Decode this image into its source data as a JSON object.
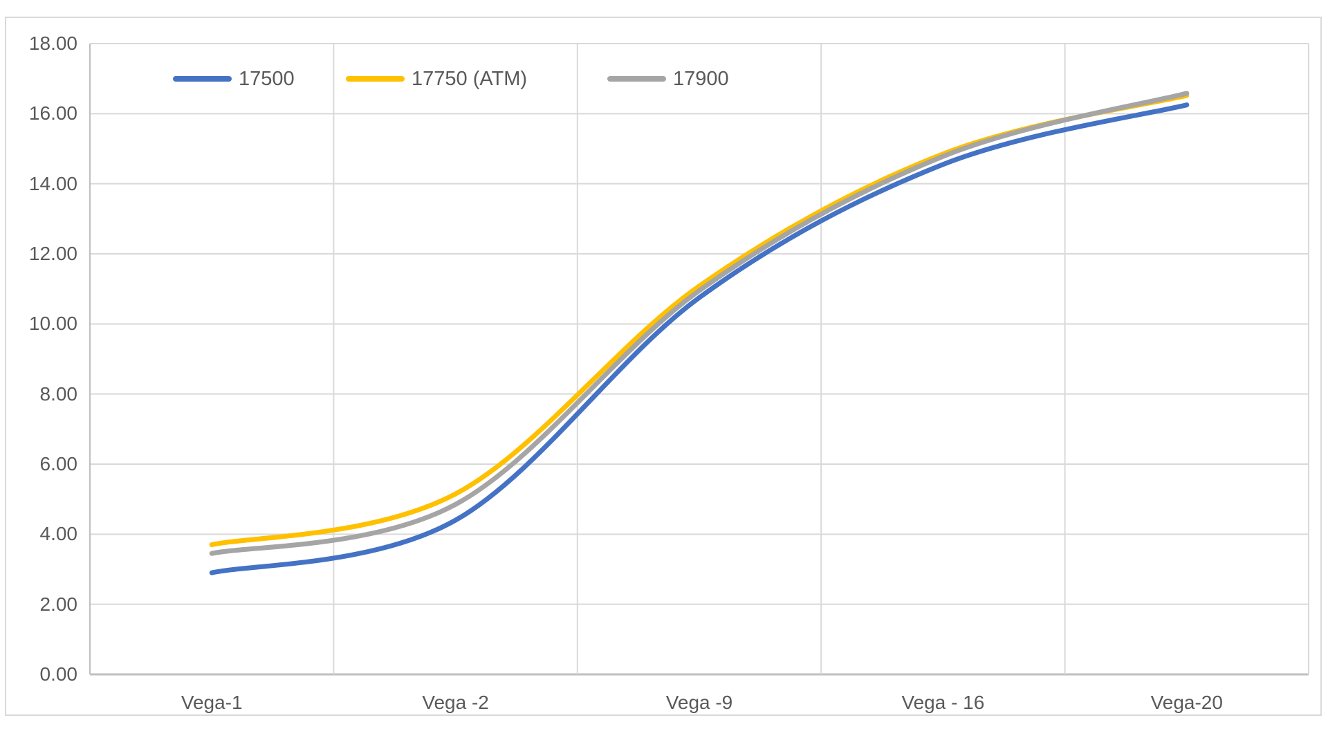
{
  "chart_data": {
    "type": "line",
    "smooth": true,
    "title": "",
    "xlabel": "",
    "ylabel": "",
    "categories": [
      "Vega-1",
      "Vega -2",
      "Vega -9",
      "Vega - 16",
      "Vega-20"
    ],
    "series": [
      {
        "name": "17500",
        "color": "#4472C4",
        "values": [
          2.9,
          4.4,
          10.75,
          14.55,
          16.25
        ]
      },
      {
        "name": "17750 (ATM)",
        "color": "#FFC000",
        "values": [
          3.7,
          5.15,
          11.08,
          14.85,
          16.52
        ]
      },
      {
        "name": "17900",
        "color": "#A5A5A5",
        "values": [
          3.45,
          4.85,
          10.95,
          14.78,
          16.58
        ]
      }
    ],
    "ylim": [
      0,
      18
    ],
    "ytick_step": 2,
    "yticks": [
      "0.00",
      "2.00",
      "4.00",
      "6.00",
      "8.00",
      "10.00",
      "12.00",
      "14.00",
      "16.00",
      "18.00"
    ],
    "grid": true,
    "legend_position": "top-inside"
  },
  "colors": {
    "background": "#FFFFFF",
    "frame_border": "#D9D9D9",
    "gridline": "#D9D9D9",
    "axis_line": "#BFBFBF",
    "tick_text": "#595959"
  }
}
